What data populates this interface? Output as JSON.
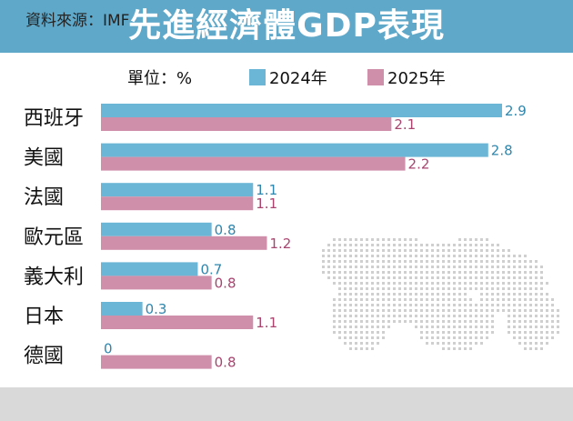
{
  "title": "先進經濟體GDP表現",
  "source": "資料來源：IMF",
  "colors": {
    "header": "#5fa8c9",
    "series_2024": "#6bb6d6",
    "series_2025": "#cf8fab",
    "label_2024": "#2f86ad",
    "label_2025": "#a8456f"
  },
  "chart_data": {
    "type": "bar",
    "orientation": "horizontal",
    "title": "先進經濟體GDP表現",
    "unit_label": "單位：%",
    "categories": [
      "西班牙",
      "美國",
      "法國",
      "歐元區",
      "義大利",
      "日本",
      "德國"
    ],
    "series": [
      {
        "name": "2024年",
        "values": [
          2.9,
          2.8,
          1.1,
          0.8,
          0.7,
          0.3,
          0
        ]
      },
      {
        "name": "2025年",
        "values": [
          2.1,
          2.2,
          1.1,
          1.2,
          0.8,
          1.1,
          0.8
        ]
      }
    ],
    "xlim": [
      0,
      2.9
    ],
    "legend_position": "top",
    "grid": false,
    "source": "資料來源：IMF"
  }
}
